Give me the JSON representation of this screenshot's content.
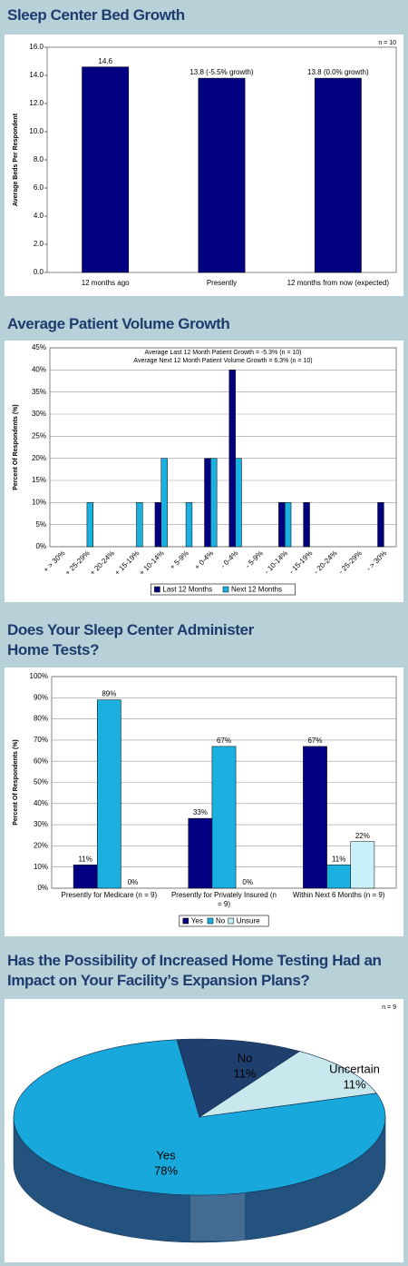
{
  "chart_data": [
    {
      "type": "bar",
      "title": "Sleep Center Bed Growth",
      "y_label": "Average Beds Per Respondent",
      "annotations": [
        "n = 10"
      ],
      "categories": [
        "12 months ago",
        "Presently",
        "12 months from now (expected)"
      ],
      "values": [
        14.6,
        13.8,
        13.8
      ],
      "value_labels": [
        "14.6",
        "13.8 (-5.5% growth)",
        "13.8 (0.0% growth)"
      ],
      "color": "#000080",
      "ylim": [
        0,
        16
      ],
      "yticks": [
        {
          "value": 0,
          "label": "0.0"
        },
        {
          "value": 2,
          "label": "2.0"
        },
        {
          "value": 4,
          "label": "4.0"
        },
        {
          "value": 6,
          "label": "6.0"
        },
        {
          "value": 8,
          "label": "8.0"
        },
        {
          "value": 10,
          "label": "10.0"
        },
        {
          "value": 12,
          "label": "12.0"
        },
        {
          "value": 14,
          "label": "14.0"
        },
        {
          "value": 16,
          "label": "16.0"
        }
      ],
      "grid": false
    },
    {
      "type": "bar",
      "title": "Average Patient Volume Growth",
      "y_label": "Percent Of Respondents (%)",
      "annotations": [
        "Average Last 12 Month Patient Growth = -5.3% (n = 10)",
        "Average Next 12 Month Patient Volume Growth = 6.3% (n = 10)"
      ],
      "categories": [
        "+ > 30%",
        "+ 25-29%",
        "+ 20-24%",
        "+ 15-19%",
        "+ 10-14%",
        "+ 5-9%",
        "+ 0-4%",
        "- 0-4%",
        "- 5-9%",
        "- 10-14%",
        "- 15-19%",
        "- 20-24%",
        "- 25-29%",
        "- > 30%"
      ],
      "series": [
        {
          "name": "Last 12 Months",
          "color": "#000080",
          "values": [
            0,
            0,
            0,
            0,
            10,
            0,
            20,
            40,
            0,
            10,
            10,
            0,
            0,
            10
          ]
        },
        {
          "name": "Next 12 Months",
          "color": "#1ab0e0",
          "values": [
            0,
            10,
            0,
            10,
            20,
            10,
            20,
            20,
            0,
            10,
            0,
            0,
            0,
            0
          ]
        }
      ],
      "ylim": [
        0,
        45
      ],
      "yticks": [
        {
          "value": 0,
          "label": "0%"
        },
        {
          "value": 5,
          "label": "5%"
        },
        {
          "value": 10,
          "label": "10%"
        },
        {
          "value": 15,
          "label": "15%"
        },
        {
          "value": 20,
          "label": "20%"
        },
        {
          "value": 25,
          "label": "25%"
        },
        {
          "value": 30,
          "label": "30%"
        },
        {
          "value": 35,
          "label": "35%"
        },
        {
          "value": 40,
          "label": "40%"
        },
        {
          "value": 45,
          "label": "45%"
        }
      ],
      "grid": true,
      "legend": "bottom"
    },
    {
      "type": "bar",
      "title": "Does Your Sleep Center Administer Home Tests?",
      "y_label": "Percent Of Respondents (%)",
      "categories": [
        "Presently for Medicare (n = 9)",
        "Presently for Privately Insured (n = 9)",
        "Within Next 6 Months (n = 9)"
      ],
      "series": [
        {
          "name": "Yes",
          "color": "#000080",
          "values": [
            11,
            33,
            67
          ],
          "value_labels": [
            "11%",
            "33%",
            "67%"
          ]
        },
        {
          "name": "No",
          "color": "#1ab0e0",
          "values": [
            89,
            67,
            11
          ],
          "value_labels": [
            "89%",
            "67%",
            "11%"
          ]
        },
        {
          "name": "Unsure",
          "color": "#c8f0f8",
          "values": [
            0,
            0,
            22
          ],
          "value_labels": [
            "0%",
            "0%",
            "22%"
          ]
        }
      ],
      "ylim": [
        0,
        100
      ],
      "yticks": [
        {
          "value": 0,
          "label": "0%"
        },
        {
          "value": 10,
          "label": "10%"
        },
        {
          "value": 20,
          "label": "20%"
        },
        {
          "value": 30,
          "label": "30%"
        },
        {
          "value": 40,
          "label": "40%"
        },
        {
          "value": 50,
          "label": "50%"
        },
        {
          "value": 60,
          "label": "60%"
        },
        {
          "value": 70,
          "label": "70%"
        },
        {
          "value": 80,
          "label": "80%"
        },
        {
          "value": 90,
          "label": "90%"
        },
        {
          "value": 100,
          "label": "100%"
        }
      ],
      "grid": true,
      "legend": "bottom"
    },
    {
      "type": "pie",
      "title": "Has the Possibility of Increased Home Testing Had an Impact on Your Facility’s Expansion Plans?",
      "annotations": [
        "n = 9"
      ],
      "labels": [
        "Yes",
        "No",
        "Uncertain"
      ],
      "values": [
        78,
        11,
        11
      ],
      "value_labels": [
        "78%",
        "11%",
        "11%"
      ],
      "colors": [
        "#18a8dc",
        "#1f3f6f",
        "#c8e8ee"
      ]
    }
  ]
}
